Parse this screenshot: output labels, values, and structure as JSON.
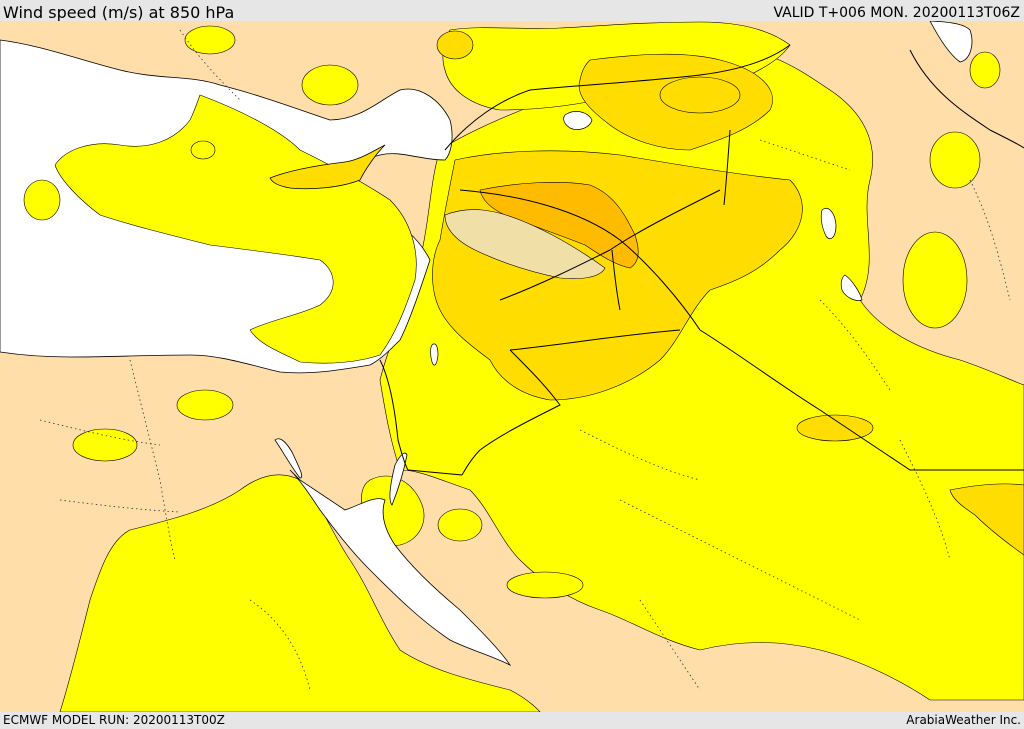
{
  "header": {
    "title": "Wind speed (m/s) at 850 hPa",
    "valid": "VALID T+006 MON. 20200113T06Z"
  },
  "footer": {
    "model_run": "ECMWF MODEL RUN: 20200113T00Z",
    "credit": "ArabiaWeather Inc."
  },
  "map_style": {
    "land_calm": "#ffdeaa",
    "sea": "#ffffff",
    "band_1": "#ffff00",
    "band_2": "#ffdd00",
    "band_3": "#ffbb00",
    "band_4": "#f0e0a8",
    "border_color": "#000000"
  }
}
